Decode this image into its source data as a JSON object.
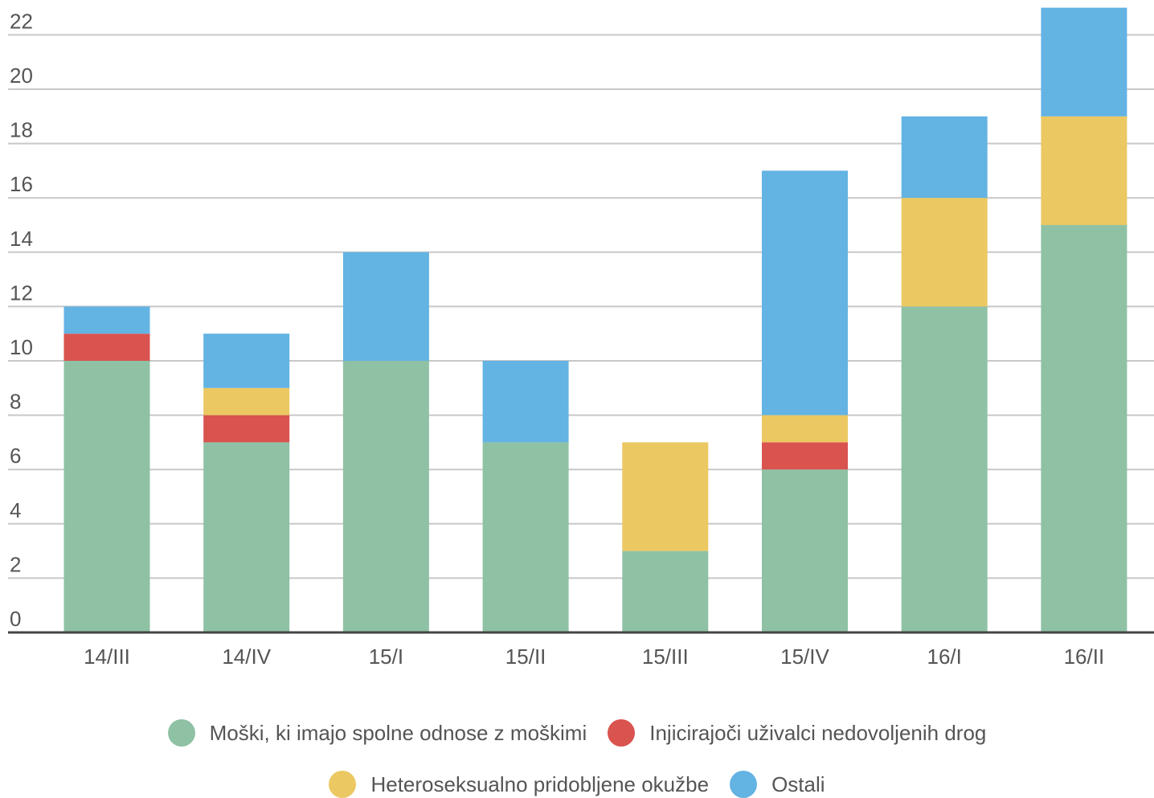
{
  "chart_data": {
    "type": "bar",
    "stacked": true,
    "categories": [
      "14/III",
      "14/IV",
      "15/I",
      "15/II",
      "15/III",
      "15/IV",
      "16/I",
      "16/II"
    ],
    "series": [
      {
        "name": "Moški, ki imajo spolne odnose z moškimi",
        "color": "#8fc1a5",
        "values": [
          10,
          7,
          10,
          7,
          3,
          6,
          12,
          15
        ]
      },
      {
        "name": "Injicirajoči uživalci nedovoljenih drog",
        "color": "#d9534f",
        "values": [
          1,
          1,
          0,
          0,
          0,
          1,
          0,
          0
        ]
      },
      {
        "name": "Heteroseksualno pridobljene okužbe",
        "color": "#ebc862",
        "values": [
          0,
          1,
          0,
          0,
          4,
          1,
          4,
          4
        ]
      },
      {
        "name": "Ostali",
        "color": "#63b3e3",
        "values": [
          1,
          2,
          4,
          3,
          0,
          9,
          3,
          4
        ]
      }
    ],
    "yticks": [
      0,
      2,
      4,
      6,
      8,
      10,
      12,
      14,
      16,
      18,
      20,
      22
    ],
    "ylim": [
      0,
      23
    ],
    "grid": true,
    "legend_position": "bottom"
  }
}
